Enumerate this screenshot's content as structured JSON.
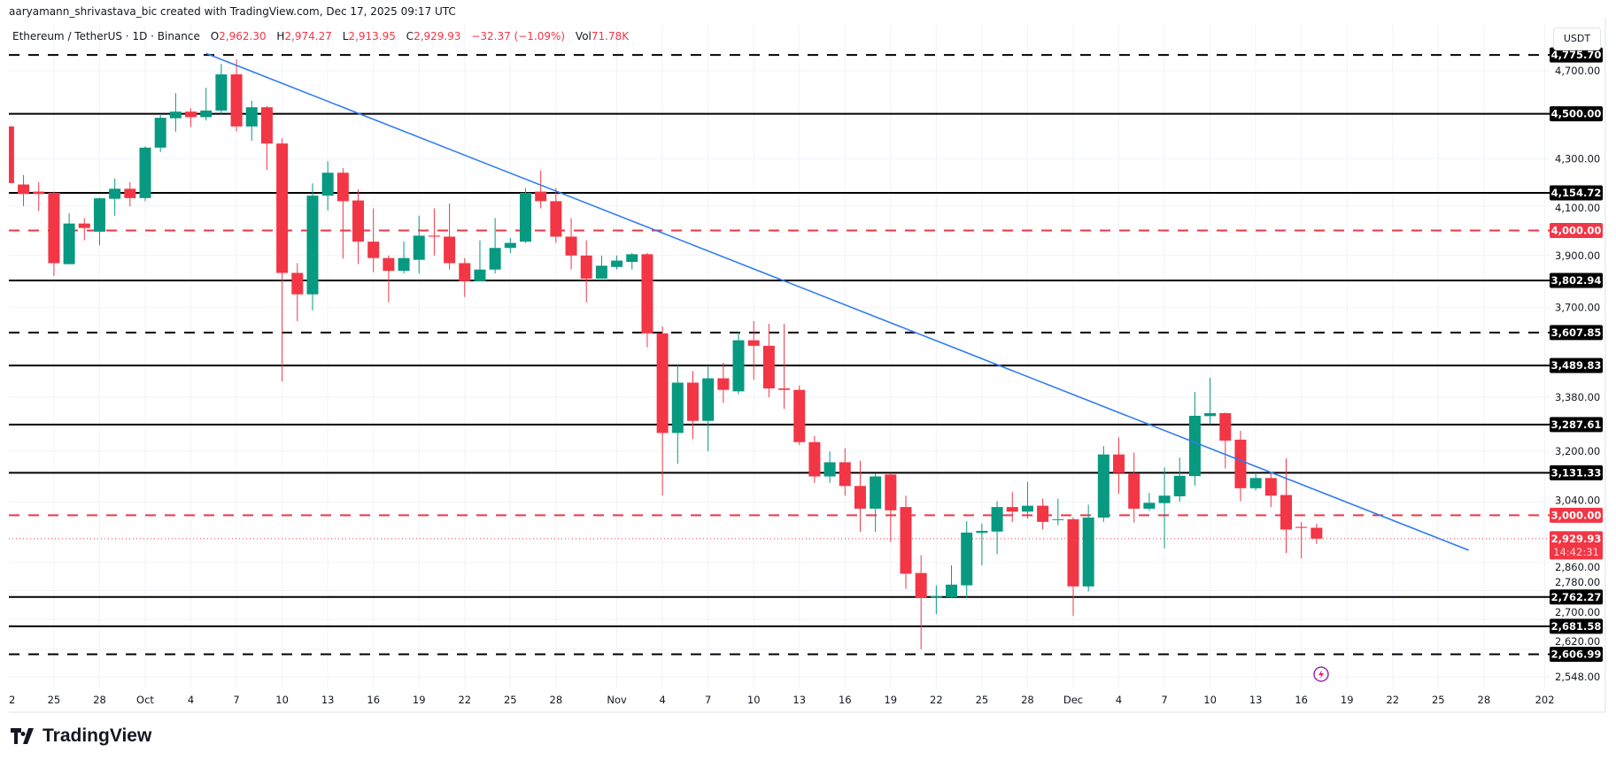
{
  "header": {
    "credit": "aaryamann_shrivastava_bic created with TradingView.com, Dec 17, 2025 09:17 UTC",
    "symbol": "Ethereum / TetherUS · 1D · Binance",
    "open_label": "O",
    "open": "2,962.30",
    "high_label": "H",
    "high": "2,974.27",
    "low_label": "L",
    "low": "2,913.95",
    "close_label": "C",
    "close": "2,929.93",
    "change": "−32.37 (−1.09%)",
    "vol_label": "Vol",
    "vol": "71.78K"
  },
  "currency_button": "USDT",
  "brand": "TradingView",
  "colors": {
    "up": "#089981",
    "down": "#F23645",
    "trendline": "#2F7BF5",
    "level": "#000000",
    "red_level": "#F23645",
    "lightning": "#9C27B0"
  },
  "chart_data": {
    "type": "candlestick",
    "y_scale": "log",
    "ylim": [
      2520,
      4800
    ],
    "grid": true,
    "columns": [
      "date",
      "open",
      "high",
      "low",
      "close"
    ],
    "candles": [
      [
        "2025-09-22",
        4443,
        4460,
        4180,
        4196
      ],
      [
        "2025-09-23",
        4190,
        4230,
        4100,
        4150
      ],
      [
        "2025-09-24",
        4160,
        4200,
        4080,
        4150
      ],
      [
        "2025-09-25",
        4155,
        4160,
        3820,
        3870
      ],
      [
        "2025-09-26",
        3866,
        4070,
        3866,
        4028
      ],
      [
        "2025-09-27",
        4028,
        4050,
        3960,
        4010
      ],
      [
        "2025-09-28",
        3995,
        4135,
        3940,
        4132
      ],
      [
        "2025-09-29",
        4130,
        4215,
        4060,
        4172
      ],
      [
        "2025-09-30",
        4172,
        4200,
        4098,
        4133
      ],
      [
        "2025-10-01",
        4133,
        4355,
        4120,
        4349
      ],
      [
        "2025-10-02",
        4349,
        4500,
        4330,
        4482
      ],
      [
        "2025-10-03",
        4480,
        4595,
        4420,
        4510
      ],
      [
        "2025-10-04",
        4510,
        4525,
        4440,
        4485
      ],
      [
        "2025-10-05",
        4485,
        4620,
        4470,
        4515
      ],
      [
        "2025-10-06",
        4515,
        4733,
        4500,
        4683
      ],
      [
        "2025-10-07",
        4683,
        4755,
        4420,
        4443
      ],
      [
        "2025-10-08",
        4443,
        4560,
        4380,
        4530
      ],
      [
        "2025-10-09",
        4530,
        4535,
        4252,
        4367
      ],
      [
        "2025-10-10",
        4367,
        4390,
        3434,
        3832
      ],
      [
        "2025-10-11",
        3832,
        3870,
        3650,
        3750
      ],
      [
        "2025-10-12",
        3750,
        4195,
        3690,
        4143
      ],
      [
        "2025-10-13",
        4143,
        4290,
        4082,
        4240
      ],
      [
        "2025-10-14",
        4240,
        4260,
        3888,
        4120
      ],
      [
        "2025-10-15",
        4123,
        4170,
        3867,
        3955
      ],
      [
        "2025-10-16",
        3955,
        4090,
        3835,
        3890
      ],
      [
        "2025-10-17",
        3890,
        3900,
        3720,
        3840
      ],
      [
        "2025-10-18",
        3840,
        3955,
        3830,
        3890
      ],
      [
        "2025-10-19",
        3883,
        4060,
        3830,
        3979
      ],
      [
        "2025-10-20",
        3979,
        4090,
        3900,
        3975
      ],
      [
        "2025-10-21",
        3975,
        4110,
        3845,
        3870
      ],
      [
        "2025-10-22",
        3870,
        3890,
        3740,
        3800
      ],
      [
        "2025-10-23",
        3800,
        3960,
        3800,
        3845
      ],
      [
        "2025-10-24",
        3845,
        4050,
        3830,
        3930
      ],
      [
        "2025-10-25",
        3930,
        3970,
        3910,
        3950
      ],
      [
        "2025-10-26",
        3955,
        4175,
        3950,
        4155
      ],
      [
        "2025-10-27",
        4160,
        4250,
        4090,
        4120
      ],
      [
        "2025-10-28",
        4120,
        4175,
        3950,
        3975
      ],
      [
        "2025-10-29",
        3975,
        4050,
        3845,
        3900
      ],
      [
        "2025-10-30",
        3900,
        3960,
        3720,
        3810
      ],
      [
        "2025-10-31",
        3810,
        3900,
        3810,
        3860
      ],
      [
        "2025-11-01",
        3855,
        3900,
        3845,
        3880
      ],
      [
        "2025-11-02",
        3875,
        3910,
        3845,
        3905
      ],
      [
        "2025-11-03",
        3905,
        3910,
        3555,
        3605
      ],
      [
        "2025-11-04",
        3605,
        3630,
        3060,
        3260
      ],
      [
        "2025-11-05",
        3260,
        3495,
        3160,
        3430
      ],
      [
        "2025-11-06",
        3430,
        3470,
        3240,
        3300
      ],
      [
        "2025-11-07",
        3300,
        3490,
        3200,
        3445
      ],
      [
        "2025-11-08",
        3445,
        3500,
        3360,
        3405
      ],
      [
        "2025-11-09",
        3400,
        3610,
        3390,
        3580
      ],
      [
        "2025-11-10",
        3580,
        3650,
        3440,
        3560
      ],
      [
        "2025-11-11",
        3560,
        3640,
        3380,
        3410
      ],
      [
        "2025-11-12",
        3410,
        3640,
        3340,
        3405
      ],
      [
        "2025-11-13",
        3405,
        3420,
        3220,
        3230
      ],
      [
        "2025-11-14",
        3230,
        3250,
        3100,
        3120
      ],
      [
        "2025-11-15",
        3120,
        3200,
        3100,
        3165
      ],
      [
        "2025-11-16",
        3165,
        3210,
        3060,
        3090
      ],
      [
        "2025-11-17",
        3090,
        3170,
        2950,
        3020
      ],
      [
        "2025-11-18",
        3020,
        3130,
        2950,
        3120
      ],
      [
        "2025-11-19",
        3126,
        3130,
        2920,
        3015
      ],
      [
        "2025-11-20",
        3025,
        3060,
        2785,
        2828
      ],
      [
        "2025-11-21",
        2830,
        2881,
        2620,
        2760
      ],
      [
        "2025-11-22",
        2760,
        2795,
        2715,
        2764
      ],
      [
        "2025-11-23",
        2762,
        2852,
        2760,
        2797
      ],
      [
        "2025-11-24",
        2795,
        2982,
        2760,
        2948
      ],
      [
        "2025-11-25",
        2947,
        2975,
        2852,
        2953
      ],
      [
        "2025-11-26",
        2951,
        3043,
        2884,
        3025
      ],
      [
        "2025-11-27",
        3025,
        3071,
        2980,
        3011
      ],
      [
        "2025-11-28",
        3011,
        3103,
        2990,
        3029
      ],
      [
        "2025-11-29",
        3029,
        3051,
        2957,
        2980
      ],
      [
        "2025-11-30",
        2987,
        3051,
        2970,
        2988
      ],
      [
        "2025-12-01",
        2988,
        2994,
        2710,
        2792
      ],
      [
        "2025-12-02",
        2792,
        3032,
        2778,
        2993
      ],
      [
        "2025-12-03",
        2993,
        3217,
        2980,
        3190
      ],
      [
        "2025-12-04",
        3190,
        3245,
        3066,
        3131
      ],
      [
        "2025-12-05",
        3130,
        3196,
        2978,
        3020
      ],
      [
        "2025-12-06",
        3020,
        3068,
        3014,
        3038
      ],
      [
        "2025-12-07",
        3037,
        3149,
        2901,
        3060
      ],
      [
        "2025-12-08",
        3058,
        3180,
        3041,
        3122
      ],
      [
        "2025-12-09",
        3121,
        3398,
        3091,
        3317
      ],
      [
        "2025-12-10",
        3316,
        3447,
        3288,
        3326
      ],
      [
        "2025-12-11",
        3326,
        3328,
        3145,
        3235
      ],
      [
        "2025-12-12",
        3238,
        3267,
        3043,
        3083
      ],
      [
        "2025-12-13",
        3083,
        3131,
        3076,
        3115
      ],
      [
        "2025-12-14",
        3115,
        3131,
        3025,
        3060
      ],
      [
        "2025-12-15",
        3062,
        3177,
        2888,
        2957
      ],
      [
        "2025-12-16",
        2965,
        2980,
        2872,
        2962
      ],
      [
        "2025-12-17",
        2962.3,
        2974.27,
        2913.95,
        2929.93
      ]
    ],
    "trendline": {
      "from": [
        "2025-10-05",
        4783
      ],
      "to": [
        "2025-12-27",
        2896
      ]
    },
    "levels": [
      {
        "price": 4775.7,
        "label": "4,775.70",
        "style": "dashed",
        "color": "#000000"
      },
      {
        "price": 4500.0,
        "label": "4,500.00",
        "style": "solid",
        "color": "#000000"
      },
      {
        "price": 4154.72,
        "label": "4,154.72",
        "style": "solid",
        "color": "#000000"
      },
      {
        "price": 4000.0,
        "label": "4,000.00",
        "style": "dashed",
        "color": "#F23645"
      },
      {
        "price": 3802.94,
        "label": "3,802.94",
        "style": "solid",
        "color": "#000000"
      },
      {
        "price": 3607.85,
        "label": "3,607.85",
        "style": "dashed",
        "color": "#000000"
      },
      {
        "price": 3489.83,
        "label": "3,489.83",
        "style": "solid",
        "color": "#000000"
      },
      {
        "price": 3287.61,
        "label": "3,287.61",
        "style": "solid",
        "color": "#000000"
      },
      {
        "price": 3131.33,
        "label": "3,131.33",
        "style": "solid",
        "color": "#000000"
      },
      {
        "price": 3000.0,
        "label": "3,000.00",
        "style": "dashed",
        "color": "#F23645"
      },
      {
        "price": 2762.27,
        "label": "2,762.27",
        "style": "solid",
        "color": "#000000"
      },
      {
        "price": 2681.58,
        "label": "2,681.58",
        "style": "solid",
        "color": "#000000"
      },
      {
        "price": 2606.99,
        "label": "2,606.99",
        "style": "dashed",
        "color": "#000000"
      }
    ],
    "current_price": {
      "price": 2929.93,
      "label": "2,929.93",
      "countdown": "14:42:31"
    },
    "y_ticks": [
      {
        "v": 4700,
        "t": "4,700.00"
      },
      {
        "v": 4300,
        "t": "4,300.00"
      },
      {
        "v": 4100,
        "t": "4,100.00"
      },
      {
        "v": 3900,
        "t": "3,900.00"
      },
      {
        "v": 3700,
        "t": "3,700.00"
      },
      {
        "v": 3380,
        "t": "3,380.00"
      },
      {
        "v": 3200,
        "t": "3,200.00"
      },
      {
        "v": 3040,
        "t": "3,040.00"
      },
      {
        "v": 2860,
        "t": "2,860.00"
      },
      {
        "v": 2780,
        "t": "2,780.00"
      },
      {
        "v": 2700,
        "t": "2,700.00"
      },
      {
        "v": 2620,
        "t": "2,620.00"
      },
      {
        "v": 2548,
        "t": "2,548.00"
      }
    ],
    "x_ticks": [
      {
        "d": "2025-09-22",
        "t": "2"
      },
      {
        "d": "2025-09-25",
        "t": "25"
      },
      {
        "d": "2025-09-28",
        "t": "28"
      },
      {
        "d": "2025-10-01",
        "t": "Oct"
      },
      {
        "d": "2025-10-04",
        "t": "4"
      },
      {
        "d": "2025-10-07",
        "t": "7"
      },
      {
        "d": "2025-10-10",
        "t": "10"
      },
      {
        "d": "2025-10-13",
        "t": "13"
      },
      {
        "d": "2025-10-16",
        "t": "16"
      },
      {
        "d": "2025-10-19",
        "t": "19"
      },
      {
        "d": "2025-10-22",
        "t": "22"
      },
      {
        "d": "2025-10-25",
        "t": "25"
      },
      {
        "d": "2025-10-28",
        "t": "28"
      },
      {
        "d": "2025-11-01",
        "t": "Nov"
      },
      {
        "d": "2025-11-04",
        "t": "4"
      },
      {
        "d": "2025-11-07",
        "t": "7"
      },
      {
        "d": "2025-11-10",
        "t": "10"
      },
      {
        "d": "2025-11-13",
        "t": "13"
      },
      {
        "d": "2025-11-16",
        "t": "16"
      },
      {
        "d": "2025-11-19",
        "t": "19"
      },
      {
        "d": "2025-11-22",
        "t": "22"
      },
      {
        "d": "2025-11-25",
        "t": "25"
      },
      {
        "d": "2025-11-28",
        "t": "28"
      },
      {
        "d": "2025-12-01",
        "t": "Dec"
      },
      {
        "d": "2025-12-04",
        "t": "4"
      },
      {
        "d": "2025-12-07",
        "t": "7"
      },
      {
        "d": "2025-12-10",
        "t": "10"
      },
      {
        "d": "2025-12-13",
        "t": "13"
      },
      {
        "d": "2025-12-16",
        "t": "16"
      },
      {
        "d": "2025-12-19",
        "t": "19"
      },
      {
        "d": "2025-12-22",
        "t": "22"
      },
      {
        "d": "2025-12-25",
        "t": "25"
      },
      {
        "d": "2025-12-28",
        "t": "28"
      },
      {
        "d": "2026-01-01",
        "t": "202"
      }
    ]
  }
}
